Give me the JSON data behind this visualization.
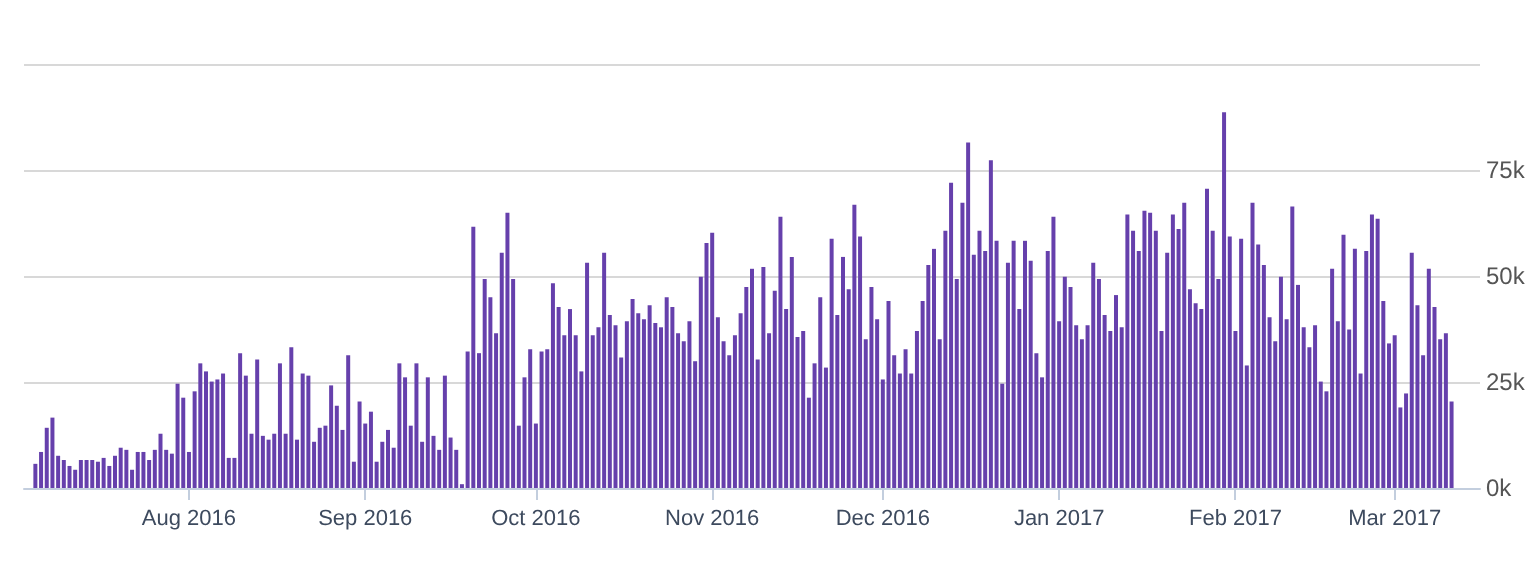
{
  "chart_data": {
    "type": "bar",
    "x": [
      "2016-07-05",
      "2016-07-06",
      "2016-07-07",
      "2016-07-08",
      "2016-07-09",
      "2016-07-10",
      "2016-07-11",
      "2016-07-12",
      "2016-07-13",
      "2016-07-14",
      "2016-07-15",
      "2016-07-16",
      "2016-07-17",
      "2016-07-18",
      "2016-07-19",
      "2016-07-20",
      "2016-07-21",
      "2016-07-22",
      "2016-07-23",
      "2016-07-24",
      "2016-07-25",
      "2016-07-26",
      "2016-07-27",
      "2016-07-28",
      "2016-07-29",
      "2016-07-30",
      "2016-07-31",
      "2016-08-01",
      "2016-08-02",
      "2016-08-03",
      "2016-08-04",
      "2016-08-05",
      "2016-08-06",
      "2016-08-07",
      "2016-08-08",
      "2016-08-09",
      "2016-08-10",
      "2016-08-11",
      "2016-08-12",
      "2016-08-13",
      "2016-08-14",
      "2016-08-15",
      "2016-08-16",
      "2016-08-17",
      "2016-08-18",
      "2016-08-19",
      "2016-08-20",
      "2016-08-21",
      "2016-08-22",
      "2016-08-23",
      "2016-08-24",
      "2016-08-25",
      "2016-08-26",
      "2016-08-27",
      "2016-08-28",
      "2016-08-29",
      "2016-08-30",
      "2016-08-31",
      "2016-09-01",
      "2016-09-02",
      "2016-09-03",
      "2016-09-04",
      "2016-09-05",
      "2016-09-06",
      "2016-09-07",
      "2016-09-08",
      "2016-09-09",
      "2016-09-10",
      "2016-09-11",
      "2016-09-12",
      "2016-09-13",
      "2016-09-14",
      "2016-09-15",
      "2016-09-16",
      "2016-09-17",
      "2016-09-18",
      "2016-09-19",
      "2016-09-20",
      "2016-09-21",
      "2016-09-22",
      "2016-09-23",
      "2016-09-24",
      "2016-09-25",
      "2016-09-26",
      "2016-09-27",
      "2016-09-28",
      "2016-09-29",
      "2016-09-30",
      "2016-10-01",
      "2016-10-02",
      "2016-10-03",
      "2016-10-04",
      "2016-10-05",
      "2016-10-06",
      "2016-10-07",
      "2016-10-08",
      "2016-10-09",
      "2016-10-10",
      "2016-10-11",
      "2016-10-12",
      "2016-10-13",
      "2016-10-14",
      "2016-10-15",
      "2016-10-16",
      "2016-10-17",
      "2016-10-18",
      "2016-10-19",
      "2016-10-20",
      "2016-10-21",
      "2016-10-22",
      "2016-10-23",
      "2016-10-24",
      "2016-10-25",
      "2016-10-26",
      "2016-10-27",
      "2016-10-28",
      "2016-10-29",
      "2016-10-30",
      "2016-10-31",
      "2016-11-01",
      "2016-11-02",
      "2016-11-03",
      "2016-11-04",
      "2016-11-05",
      "2016-11-06",
      "2016-11-07",
      "2016-11-08",
      "2016-11-09",
      "2016-11-10",
      "2016-11-11",
      "2016-11-12",
      "2016-11-13",
      "2016-11-14",
      "2016-11-15",
      "2016-11-16",
      "2016-11-17",
      "2016-11-18",
      "2016-11-19",
      "2016-11-20",
      "2016-11-21",
      "2016-11-22",
      "2016-11-23",
      "2016-11-24",
      "2016-11-25",
      "2016-11-26",
      "2016-11-27",
      "2016-11-28",
      "2016-11-29",
      "2016-11-30",
      "2016-12-01",
      "2016-12-02",
      "2016-12-03",
      "2016-12-04",
      "2016-12-05",
      "2016-12-06",
      "2016-12-07",
      "2016-12-08",
      "2016-12-09",
      "2016-12-10",
      "2016-12-11",
      "2016-12-12",
      "2016-12-13",
      "2016-12-14",
      "2016-12-15",
      "2016-12-16",
      "2016-12-17",
      "2016-12-18",
      "2016-12-19",
      "2016-12-20",
      "2016-12-21",
      "2016-12-22",
      "2016-12-23",
      "2016-12-24",
      "2016-12-25",
      "2016-12-26",
      "2016-12-27",
      "2016-12-28",
      "2016-12-29",
      "2016-12-30",
      "2016-12-31",
      "2017-01-01",
      "2017-01-02",
      "2017-01-03",
      "2017-01-04",
      "2017-01-05",
      "2017-01-06",
      "2017-01-07",
      "2017-01-08",
      "2017-01-09",
      "2017-01-10",
      "2017-01-11",
      "2017-01-12",
      "2017-01-13",
      "2017-01-14",
      "2017-01-15",
      "2017-01-16",
      "2017-01-17",
      "2017-01-18",
      "2017-01-19",
      "2017-01-20",
      "2017-01-21",
      "2017-01-22",
      "2017-01-23",
      "2017-01-24",
      "2017-01-25",
      "2017-01-26",
      "2017-01-27",
      "2017-01-28",
      "2017-01-29",
      "2017-01-30",
      "2017-01-31",
      "2017-02-01",
      "2017-02-02",
      "2017-02-03",
      "2017-02-04",
      "2017-02-05",
      "2017-02-06",
      "2017-02-07",
      "2017-02-08",
      "2017-02-09",
      "2017-02-10",
      "2017-02-11",
      "2017-02-12",
      "2017-02-13",
      "2017-02-14",
      "2017-02-15",
      "2017-02-16",
      "2017-02-17",
      "2017-02-18",
      "2017-02-19",
      "2017-02-20",
      "2017-02-21",
      "2017-02-22",
      "2017-02-23",
      "2017-02-24",
      "2017-02-25",
      "2017-02-26",
      "2017-02-27",
      "2017-02-28",
      "2017-03-01",
      "2017-03-02",
      "2017-03-03",
      "2017-03-04",
      "2017-03-05",
      "2017-03-06",
      "2017-03-07",
      "2017-03-08",
      "2017-03-09",
      "2017-03-10",
      "2017-03-11"
    ],
    "values": [
      5.7,
      8.5,
      14.2,
      16.6,
      7.6,
      6.6,
      5.2,
      4.3,
      6.6,
      6.6,
      6.6,
      6.2,
      7.1,
      5.2,
      7.6,
      9.5,
      9.0,
      4.3,
      8.5,
      8.5,
      6.6,
      9.0,
      12.8,
      9.0,
      8.1,
      24.6,
      21.3,
      8.5,
      22.8,
      29.4,
      27.5,
      25.1,
      25.6,
      27.0,
      7.1,
      7.1,
      31.8,
      26.5,
      12.8,
      30.3,
      12.3,
      11.4,
      12.8,
      29.4,
      12.8,
      33.2,
      11.4,
      27.0,
      26.5,
      10.9,
      14.2,
      14.7,
      24.2,
      19.4,
      13.7,
      31.3,
      6.2,
      20.4,
      15.2,
      18.0,
      6.2,
      10.9,
      13.7,
      9.5,
      29.4,
      26.1,
      14.7,
      29.4,
      10.9,
      26.1,
      12.3,
      9.0,
      26.5,
      11.9,
      9.0,
      0.9,
      32.2,
      61.6,
      31.8,
      49.3,
      45.0,
      36.5,
      55.5,
      64.9,
      49.3,
      14.7,
      26.1,
      32.7,
      15.2,
      32.2,
      32.7,
      48.3,
      42.7,
      36.0,
      42.2,
      36.0,
      27.5,
      53.1,
      36.0,
      37.9,
      55.5,
      40.8,
      38.4,
      30.8,
      39.3,
      44.6,
      41.2,
      39.8,
      43.1,
      38.9,
      37.9,
      45.0,
      42.7,
      36.5,
      34.6,
      39.3,
      29.9,
      49.8,
      57.8,
      60.2,
      40.3,
      34.6,
      31.3,
      36.0,
      41.2,
      47.4,
      51.7,
      30.3,
      52.1,
      36.5,
      46.5,
      64.0,
      42.2,
      54.5,
      35.6,
      37.0,
      21.3,
      29.4,
      45.0,
      28.4,
      58.8,
      40.8,
      54.5,
      46.9,
      66.8,
      59.3,
      35.1,
      47.4,
      39.8,
      25.6,
      44.1,
      31.3,
      27.0,
      32.7,
      27.0,
      37.0,
      44.1,
      52.6,
      56.4,
      35.1,
      60.7,
      72.0,
      49.3,
      67.3,
      81.5,
      55.0,
      60.7,
      55.9,
      77.3,
      58.3,
      24.6,
      53.1,
      58.3,
      42.2,
      58.3,
      53.6,
      31.8,
      26.1,
      55.9,
      64.0,
      39.3,
      49.8,
      47.4,
      38.4,
      35.1,
      38.4,
      53.1,
      49.3,
      40.8,
      37.0,
      45.5,
      37.9,
      64.5,
      60.7,
      55.9,
      65.4,
      64.9,
      60.7,
      37.0,
      55.5,
      64.5,
      61.1,
      67.3,
      46.9,
      43.6,
      42.2,
      70.6,
      60.7,
      49.3,
      88.6,
      59.3,
      37.0,
      58.8,
      28.9,
      67.3,
      57.4,
      52.6,
      40.3,
      34.6,
      49.8,
      39.8,
      66.4,
      47.9,
      37.9,
      33.2,
      38.4,
      25.1,
      22.8,
      51.7,
      39.3,
      59.7,
      37.4,
      56.4,
      27.0,
      55.9,
      64.5,
      63.5,
      44.1,
      34.1,
      36.0,
      19.0,
      22.3,
      55.5,
      43.1,
      31.3,
      51.7,
      42.7,
      35.1,
      36.5,
      20.4
    ],
    "color": "#6640ac",
    "xlim": [
      "2016-07-03",
      "2017-03-16"
    ],
    "xticks": [
      {
        "value": "2016-08-01",
        "label": "Aug 2016"
      },
      {
        "value": "2016-09-01",
        "label": "Sep 2016"
      },
      {
        "value": "2016-10-01",
        "label": "Oct 2016"
      },
      {
        "value": "2016-11-01",
        "label": "Nov 2016"
      },
      {
        "value": "2016-12-01",
        "label": "Dec 2016"
      },
      {
        "value": "2017-01-01",
        "label": "Jan 2017"
      },
      {
        "value": "2017-02-01",
        "label": "Feb 2017"
      },
      {
        "value": "2017-03-01",
        "label": "Mar 2017"
      }
    ],
    "ylim": [
      0,
      100
    ],
    "yticks": [
      {
        "value": 0,
        "label": "0k"
      },
      {
        "value": 25,
        "label": "25k"
      },
      {
        "value": 50,
        "label": "50k"
      },
      {
        "value": 75,
        "label": "75k"
      },
      {
        "value": 100,
        "label": null
      }
    ],
    "grid": "y"
  }
}
